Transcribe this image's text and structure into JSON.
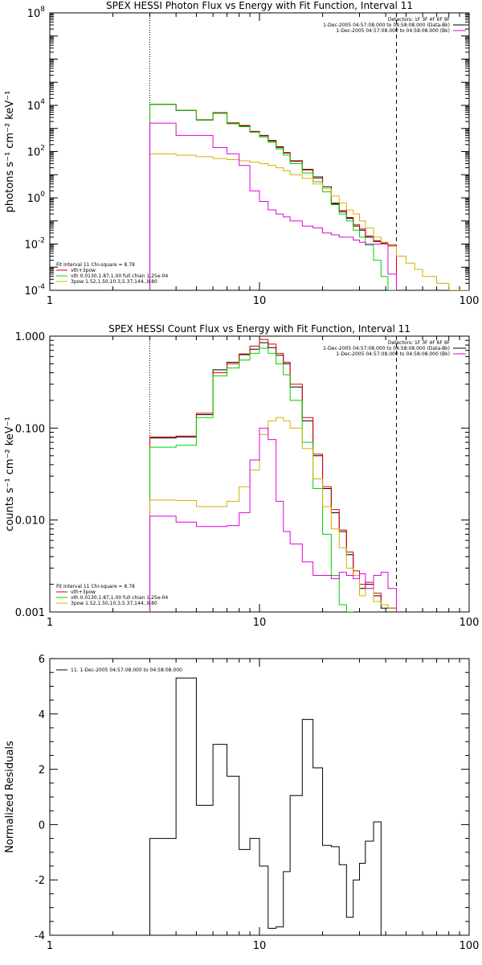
{
  "chart_data": [
    {
      "type": "line",
      "title": "SPEX HESSI Photon Flux vs Energy with Fit Function, Interval 11",
      "ylabel": "photons s⁻¹ cm⁻² keV⁻¹",
      "xlabel": "",
      "xscale": "log",
      "yscale": "log",
      "xlim": [
        1,
        100
      ],
      "ylim": [
        0.0001,
        100000000
      ],
      "x_ticks": [
        "1",
        "10",
        "100"
      ],
      "y_ticks": [
        {
          "v": 100000000,
          "base": "10",
          "exp": "8"
        },
        {
          "v": 10000,
          "base": "10",
          "exp": "4"
        },
        {
          "v": 100,
          "base": "10",
          "exp": "2"
        },
        {
          "v": 1,
          "base": "10",
          "exp": "0"
        },
        {
          "v": 0.01,
          "base": "10",
          "exp": "-2"
        },
        {
          "v": 0.0001,
          "base": "10",
          "exp": "-4"
        }
      ],
      "vlines": [
        {
          "x": 3,
          "style": "dotted"
        },
        {
          "x": 45,
          "style": "dashed"
        }
      ],
      "legend_tr": [
        {
          "text": "Detectors: 1F 3F 4F 6F 9F",
          "color": "#000000",
          "sample": false
        },
        {
          "text": "1-Dec-2005 04:57:08.000 to 04:58:08.000 (Data-Bk)",
          "color": "#000000",
          "sample": true
        },
        {
          "text": "1-Dec-2005 04:57:08.000 to 04:58:08.000 (Bk)",
          "color": "#e000e0",
          "sample": true
        }
      ],
      "legend_bl": [
        {
          "text": "Fit Interval 11    Chi-square = 8.78",
          "color": "#000000",
          "sample": false
        },
        {
          "text": "vth+3pow",
          "color": "#e00000",
          "sample": true
        },
        {
          "text": "vth 0.0130,1.87,1.00  full chian 1.25e-04",
          "color": "#00d000",
          "sample": true
        },
        {
          "text": "3pow 1.52,1.50,10.3,5.37,144.,9.80",
          "color": "#d4b000",
          "sample": true
        }
      ],
      "edges": [
        3,
        4,
        5,
        6,
        7,
        8,
        9,
        10,
        11,
        12,
        13,
        14,
        16,
        18,
        20,
        22,
        24,
        26,
        28,
        30,
        32,
        35,
        38,
        41,
        45,
        50,
        55,
        60,
        70,
        80,
        90,
        100
      ],
      "series": [
        {
          "name": "1-Dec-2005 04:57:08.000 to 04:58:08.000 (Data-Bk)",
          "color": "#000000",
          "values": [
            11000,
            6000,
            2300,
            4800,
            1700,
            1300,
            750,
            500,
            300,
            160,
            90,
            40,
            17,
            8,
            3,
            0.55,
            0.25,
            0.13,
            0.06,
            0.04,
            0.02,
            0.013,
            0.011,
            0.009,
            null,
            null,
            null,
            null,
            null,
            null,
            null
          ]
        },
        {
          "name": "vth+3pow",
          "color": "#e00000",
          "values": [
            11000,
            6100,
            2400,
            4700,
            1750,
            1350,
            730,
            480,
            280,
            150,
            85,
            38,
            16,
            7,
            2.5,
            0.6,
            0.28,
            0.14,
            0.07,
            0.045,
            0.022,
            0.014,
            0.011,
            0.009,
            null,
            null,
            null,
            null,
            null,
            null,
            null
          ]
        },
        {
          "name": "vth 0.0130,1.87,1.00  full chian 1.25e-04",
          "color": "#00d000",
          "values": [
            11000,
            6000,
            2300,
            4500,
            1600,
            1200,
            680,
            430,
            250,
            130,
            70,
            30,
            12,
            5,
            1.8,
            0.5,
            0.2,
            0.1,
            0.04,
            0.02,
            0.009,
            0.002,
            0.0004,
            3e-05,
            null,
            null,
            null,
            null,
            null,
            null,
            null
          ]
        },
        {
          "name": "3pow 1.52,1.50,10.3,5.37,144.,9.80",
          "color": "#d4b000",
          "values": [
            80,
            70,
            60,
            50,
            45,
            40,
            35,
            30,
            25,
            20,
            15,
            10,
            7,
            4,
            2.5,
            1.2,
            0.6,
            0.3,
            0.2,
            0.1,
            0.05,
            0.02,
            0.012,
            0.008,
            0.003,
            0.0015,
            0.0008,
            0.0004,
            0.0002,
            0.0001,
            0.0001
          ]
        },
        {
          "name": "1-Dec-2005 04:57:08.000 to 04:58:08.000 (Bk)",
          "color": "#e000e0",
          "values": [
            1700,
            500,
            500,
            150,
            80,
            25,
            2,
            0.7,
            0.3,
            0.2,
            0.15,
            0.1,
            0.06,
            0.05,
            0.03,
            0.025,
            0.02,
            0.02,
            0.015,
            0.012,
            0.01,
            0.01,
            0.01,
            0.0005,
            null,
            null,
            null,
            null,
            null,
            null,
            null
          ]
        }
      ]
    },
    {
      "type": "line",
      "title": "SPEX HESSI Count Flux vs Energy with Fit Function, Interval 11",
      "ylabel": "counts s⁻¹ cm⁻² keV⁻¹",
      "xlabel": "",
      "xscale": "log",
      "yscale": "log",
      "xlim": [
        1,
        100
      ],
      "ylim": [
        0.001,
        1
      ],
      "x_ticks": [
        "1",
        "10",
        "100"
      ],
      "y_ticks": [
        {
          "v": 1,
          "label": "1.000"
        },
        {
          "v": 0.1,
          "label": "0.100"
        },
        {
          "v": 0.01,
          "label": "0.010"
        },
        {
          "v": 0.001,
          "label": "0.001"
        }
      ],
      "vlines": [
        {
          "x": 3,
          "style": "dotted"
        },
        {
          "x": 45,
          "style": "dashed"
        }
      ],
      "legend_tr": [
        {
          "text": "Detectors: 1F 3F 4F 6F 9F",
          "color": "#000000",
          "sample": false
        },
        {
          "text": "1-Dec-2005 04:57:08.000 to 04:58:08.000 (Data-Bk)",
          "color": "#000000",
          "sample": true
        },
        {
          "text": "1-Dec-2005 04:57:08.000 to 04:58:08.000 (Bk)",
          "color": "#e000e0",
          "sample": true
        }
      ],
      "legend_bl": [
        {
          "text": "Fit Interval 11    Chi-square = 8.78",
          "color": "#000000",
          "sample": false
        },
        {
          "text": "vth+3pow",
          "color": "#e00000",
          "sample": true
        },
        {
          "text": "vth 0.0130,1.87,1.00  full chian 1.25e-04",
          "color": "#00d000",
          "sample": true
        },
        {
          "text": "3pow 1.52,1.50,10.3,5.37,144.,9.80",
          "color": "#d4b000",
          "sample": true
        }
      ],
      "edges": [
        3,
        4,
        5,
        6,
        7,
        8,
        9,
        10,
        11,
        12,
        13,
        14,
        16,
        18,
        20,
        22,
        24,
        26,
        28,
        30,
        32,
        35,
        38,
        41,
        45
      ],
      "series": [
        {
          "name": "1-Dec-2005 04:57:08.000 to 04:58:08.000 (Data-Bk)",
          "color": "#000000",
          "values": [
            0.078,
            0.08,
            0.14,
            0.43,
            0.52,
            0.63,
            0.72,
            0.85,
            0.75,
            0.62,
            0.5,
            0.28,
            0.12,
            0.05,
            0.022,
            0.012,
            0.0075,
            0.0042,
            0.0025,
            0.0018,
            0.002,
            0.0015,
            0.0011,
            0.0011
          ]
        },
        {
          "name": "vth+3pow",
          "color": "#e00000",
          "values": [
            0.08,
            0.082,
            0.145,
            0.4,
            0.5,
            0.64,
            0.78,
            0.92,
            0.82,
            0.65,
            0.52,
            0.3,
            0.13,
            0.052,
            0.023,
            0.013,
            0.0078,
            0.0045,
            0.0028,
            0.002,
            0.0021,
            0.0016,
            0.0012,
            0.0011
          ]
        },
        {
          "name": "vth 0.0130,1.87,1.00  full chian 1.25e-04",
          "color": "#00d000",
          "values": [
            0.062,
            0.065,
            0.13,
            0.37,
            0.45,
            0.55,
            0.65,
            0.74,
            0.65,
            0.5,
            0.38,
            0.2,
            0.07,
            0.022,
            0.007,
            0.0025,
            0.0012,
            0.0009,
            null,
            null,
            null,
            null,
            null,
            null
          ]
        },
        {
          "name": "3pow 1.52,1.50,10.3,5.37,144.,9.80",
          "color": "#d4b000",
          "values": [
            0.0165,
            0.0163,
            0.014,
            0.014,
            0.016,
            0.023,
            0.035,
            0.085,
            0.12,
            0.13,
            0.12,
            0.1,
            0.06,
            0.028,
            0.014,
            0.008,
            0.005,
            0.003,
            0.0025,
            0.0015,
            0.0018,
            0.0013,
            0.0012,
            0.0011
          ]
        },
        {
          "name": "1-Dec-2005 04:57:08.000 to 04:58:08.000 (Bk)",
          "color": "#e000e0",
          "values": [
            0.011,
            0.0095,
            0.0085,
            0.0085,
            0.0087,
            0.012,
            0.045,
            0.1,
            0.075,
            0.016,
            0.0075,
            0.0055,
            0.0035,
            0.0025,
            0.0025,
            0.0023,
            0.0027,
            0.0025,
            0.0023,
            0.0026,
            0.0018,
            0.0025,
            0.0027,
            0.0018
          ]
        }
      ]
    },
    {
      "type": "line",
      "title": "",
      "ylabel": "Normalized Residuals",
      "xlabel": "",
      "xscale": "log",
      "yscale": "linear",
      "xlim": [
        1,
        100
      ],
      "ylim": [
        -4,
        6
      ],
      "x_ticks": [
        "1",
        "10",
        "100"
      ],
      "y_ticks": [
        {
          "v": 6,
          "label": "6"
        },
        {
          "v": 4,
          "label": "4"
        },
        {
          "v": 2,
          "label": "2"
        },
        {
          "v": 0,
          "label": "0"
        },
        {
          "v": -2,
          "label": "-2"
        },
        {
          "v": -4,
          "label": "-4"
        }
      ],
      "vlines": [],
      "legend_tr": [],
      "legend_bl": [],
      "legend_tl": [
        {
          "text": "11.  1-Dec-2005 04:57:08.000 to 04:58:08.000",
          "color": "#000000",
          "sample": true
        }
      ],
      "edges": [
        3,
        4,
        5,
        6,
        7,
        8,
        9,
        10,
        11,
        12,
        13,
        14,
        16,
        18,
        20,
        22,
        24,
        26,
        28,
        30,
        32,
        35,
        38,
        41,
        45
      ],
      "series": [
        {
          "name": "11.  1-Dec-2005 04:57:08.000 to 04:58:08.000",
          "color": "#000000",
          "values": [
            -0.5,
            5.3,
            0.7,
            2.9,
            1.75,
            -0.9,
            -0.5,
            -1.5,
            -3.75,
            -3.7,
            -1.7,
            1.05,
            3.8,
            2.05,
            -0.75,
            -0.8,
            -1.45,
            -3.35,
            -2.0,
            -1.4,
            -0.6,
            0.1,
            null,
            null
          ]
        }
      ]
    }
  ]
}
